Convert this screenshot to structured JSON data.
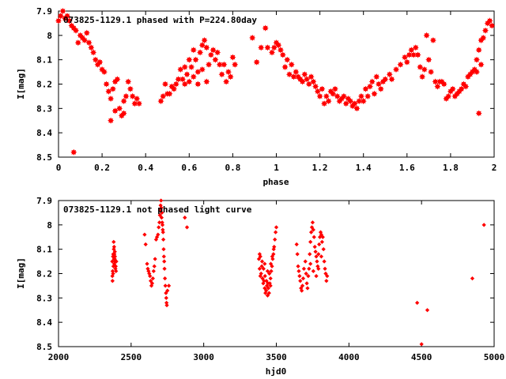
{
  "chart_data": [
    {
      "type": "scatter",
      "title": "073825-1129.1 phased with P=224.80day",
      "xlabel": "phase",
      "ylabel": "I[mag]",
      "xlim": [
        0,
        2
      ],
      "ylim": [
        7.9,
        8.5
      ],
      "y_inverted": true,
      "x_ticks": [
        "0",
        "0.2",
        "0.4",
        "0.6",
        "0.8",
        "1",
        "1.2",
        "1.4",
        "1.6",
        "1.8",
        "2"
      ],
      "y_ticks": [
        "7.9",
        "8",
        "8.1",
        "8.2",
        "8.3",
        "8.4",
        "8.5"
      ],
      "marker": "star",
      "color": "#ff0000",
      "points": [
        [
          0.0,
          7.94
        ],
        [
          0.01,
          7.92
        ],
        [
          0.02,
          7.9
        ],
        [
          0.03,
          7.93
        ],
        [
          0.04,
          7.92
        ],
        [
          0.05,
          7.94
        ],
        [
          0.06,
          7.96
        ],
        [
          0.07,
          7.97
        ],
        [
          0.07,
          8.48
        ],
        [
          0.08,
          7.98
        ],
        [
          0.09,
          8.03
        ],
        [
          0.1,
          8.0
        ],
        [
          0.11,
          8.01
        ],
        [
          0.12,
          8.02
        ],
        [
          0.13,
          7.99
        ],
        [
          0.14,
          8.03
        ],
        [
          0.15,
          8.05
        ],
        [
          0.16,
          8.07
        ],
        [
          0.17,
          8.1
        ],
        [
          0.18,
          8.12
        ],
        [
          0.19,
          8.11
        ],
        [
          0.2,
          8.14
        ],
        [
          0.21,
          8.15
        ],
        [
          0.22,
          8.2
        ],
        [
          0.23,
          8.23
        ],
        [
          0.24,
          8.26
        ],
        [
          0.25,
          8.22
        ],
        [
          0.26,
          8.19
        ],
        [
          0.27,
          8.18
        ],
        [
          0.28,
          8.3
        ],
        [
          0.29,
          8.33
        ],
        [
          0.3,
          8.27
        ],
        [
          0.31,
          8.25
        ],
        [
          0.32,
          8.19
        ],
        [
          0.33,
          8.22
        ],
        [
          0.34,
          8.25
        ],
        [
          0.35,
          8.28
        ],
        [
          0.36,
          8.26
        ],
        [
          0.37,
          8.28
        ],
        [
          0.24,
          8.35
        ],
        [
          0.26,
          8.31
        ],
        [
          0.3,
          8.32
        ],
        [
          0.47,
          8.27
        ],
        [
          0.48,
          8.25
        ],
        [
          0.49,
          8.2
        ],
        [
          0.5,
          8.24
        ],
        [
          0.51,
          8.24
        ],
        [
          0.52,
          8.21
        ],
        [
          0.53,
          8.22
        ],
        [
          0.54,
          8.2
        ],
        [
          0.55,
          8.18
        ],
        [
          0.56,
          8.14
        ],
        [
          0.57,
          8.18
        ],
        [
          0.58,
          8.13
        ],
        [
          0.59,
          8.16
        ],
        [
          0.6,
          8.1
        ],
        [
          0.61,
          8.13
        ],
        [
          0.62,
          8.06
        ],
        [
          0.63,
          8.1
        ],
        [
          0.64,
          8.15
        ],
        [
          0.65,
          8.07
        ],
        [
          0.66,
          8.04
        ],
        [
          0.67,
          8.02
        ],
        [
          0.68,
          8.05
        ],
        [
          0.69,
          8.12
        ],
        [
          0.7,
          8.08
        ],
        [
          0.71,
          8.06
        ],
        [
          0.72,
          8.1
        ],
        [
          0.73,
          8.07
        ],
        [
          0.74,
          8.12
        ],
        [
          0.75,
          8.16
        ],
        [
          0.76,
          8.12
        ],
        [
          0.77,
          8.19
        ],
        [
          0.78,
          8.15
        ],
        [
          0.79,
          8.17
        ],
        [
          0.8,
          8.09
        ],
        [
          0.81,
          8.12
        ],
        [
          0.66,
          8.14
        ],
        [
          0.62,
          8.17
        ],
        [
          0.6,
          8.19
        ],
        [
          0.64,
          8.2
        ],
        [
          0.68,
          8.19
        ],
        [
          0.58,
          8.2
        ],
        [
          0.89,
          8.01
        ],
        [
          0.91,
          8.11
        ],
        [
          0.93,
          8.05
        ],
        [
          0.95,
          7.97
        ],
        [
          0.96,
          8.05
        ],
        [
          0.98,
          8.07
        ],
        [
          0.99,
          8.05
        ],
        [
          1.0,
          8.03
        ],
        [
          1.01,
          8.04
        ],
        [
          1.02,
          8.06
        ],
        [
          1.03,
          8.08
        ],
        [
          1.04,
          8.13
        ],
        [
          1.05,
          8.1
        ],
        [
          1.06,
          8.16
        ],
        [
          1.07,
          8.12
        ],
        [
          1.08,
          8.17
        ],
        [
          1.09,
          8.15
        ],
        [
          1.1,
          8.17
        ],
        [
          1.11,
          8.18
        ],
        [
          1.12,
          8.19
        ],
        [
          1.13,
          8.16
        ],
        [
          1.14,
          8.18
        ],
        [
          1.15,
          8.2
        ],
        [
          1.16,
          8.17
        ],
        [
          1.17,
          8.19
        ],
        [
          1.18,
          8.21
        ],
        [
          1.19,
          8.23
        ],
        [
          1.2,
          8.25
        ],
        [
          1.21,
          8.22
        ],
        [
          1.22,
          8.28
        ],
        [
          1.23,
          8.25
        ],
        [
          1.24,
          8.27
        ],
        [
          1.25,
          8.23
        ],
        [
          1.26,
          8.24
        ],
        [
          1.27,
          8.22
        ],
        [
          1.28,
          8.25
        ],
        [
          1.29,
          8.27
        ],
        [
          1.3,
          8.26
        ],
        [
          1.31,
          8.25
        ],
        [
          1.32,
          8.28
        ],
        [
          1.33,
          8.26
        ],
        [
          1.34,
          8.27
        ],
        [
          1.35,
          8.29
        ],
        [
          1.36,
          8.28
        ],
        [
          1.37,
          8.3
        ],
        [
          1.38,
          8.27
        ],
        [
          1.39,
          8.25
        ],
        [
          1.4,
          8.27
        ],
        [
          1.41,
          8.22
        ],
        [
          1.42,
          8.25
        ],
        [
          1.43,
          8.21
        ],
        [
          1.44,
          8.19
        ],
        [
          1.45,
          8.24
        ],
        [
          1.46,
          8.17
        ],
        [
          1.47,
          8.2
        ],
        [
          1.48,
          8.22
        ],
        [
          1.49,
          8.19
        ],
        [
          1.5,
          8.18
        ],
        [
          1.52,
          8.16
        ],
        [
          1.53,
          8.18
        ],
        [
          1.55,
          8.14
        ],
        [
          1.57,
          8.12
        ],
        [
          1.59,
          8.09
        ],
        [
          1.6,
          8.11
        ],
        [
          1.61,
          8.08
        ],
        [
          1.62,
          8.06
        ],
        [
          1.63,
          8.08
        ],
        [
          1.64,
          8.05
        ],
        [
          1.65,
          8.08
        ],
        [
          1.66,
          8.13
        ],
        [
          1.67,
          8.17
        ],
        [
          1.68,
          8.14
        ],
        [
          1.69,
          8.0
        ],
        [
          1.7,
          8.1
        ],
        [
          1.71,
          8.15
        ],
        [
          1.72,
          8.02
        ],
        [
          1.73,
          8.19
        ],
        [
          1.74,
          8.21
        ],
        [
          1.75,
          8.19
        ],
        [
          1.76,
          8.19
        ],
        [
          1.77,
          8.2
        ],
        [
          1.78,
          8.26
        ],
        [
          1.79,
          8.25
        ],
        [
          1.8,
          8.23
        ],
        [
          1.81,
          8.22
        ],
        [
          1.82,
          8.25
        ],
        [
          1.83,
          8.24
        ],
        [
          1.84,
          8.23
        ],
        [
          1.85,
          8.22
        ],
        [
          1.86,
          8.2
        ],
        [
          1.87,
          8.21
        ],
        [
          1.88,
          8.17
        ],
        [
          1.89,
          8.16
        ],
        [
          1.9,
          8.15
        ],
        [
          1.91,
          8.14
        ],
        [
          1.92,
          8.1
        ],
        [
          1.93,
          8.06
        ],
        [
          1.94,
          8.02
        ],
        [
          1.95,
          8.01
        ],
        [
          1.96,
          7.98
        ],
        [
          1.97,
          7.95
        ],
        [
          1.98,
          7.94
        ],
        [
          1.99,
          7.96
        ],
        [
          1.93,
          8.32
        ],
        [
          1.92,
          8.15
        ],
        [
          1.94,
          8.12
        ]
      ]
    },
    {
      "type": "scatter",
      "title": "073825-1129.1 not phased light curve",
      "xlabel": "hjd0",
      "ylabel": "I[mag]",
      "xlim": [
        2000,
        5000
      ],
      "ylim": [
        7.9,
        8.5
      ],
      "y_inverted": true,
      "x_ticks": [
        "2000",
        "2500",
        "3000",
        "3500",
        "4000",
        "4500",
        "5000"
      ],
      "y_ticks": [
        "7.9",
        "8",
        "8.1",
        "8.2",
        "8.3",
        "8.4",
        "8.5"
      ],
      "marker": "diamond",
      "color": "#ff0000",
      "points": [
        [
          2370,
          8.15
        ],
        [
          2371,
          8.21
        ],
        [
          2373,
          8.19
        ],
        [
          2375,
          8.13
        ],
        [
          2377,
          8.12
        ],
        [
          2378,
          8.17
        ],
        [
          2380,
          8.07
        ],
        [
          2381,
          8.1
        ],
        [
          2382,
          8.14
        ],
        [
          2384,
          8.16
        ],
        [
          2385,
          8.12
        ],
        [
          2387,
          8.14
        ],
        [
          2388,
          8.11
        ],
        [
          2390,
          8.15
        ],
        [
          2392,
          8.18
        ],
        [
          2394,
          8.17
        ],
        [
          2396,
          8.19
        ],
        [
          2398,
          8.15
        ],
        [
          2372,
          8.23
        ],
        [
          2376,
          8.2
        ],
        [
          2383,
          8.09
        ],
        [
          2389,
          8.13
        ],
        [
          2600,
          8.08
        ],
        [
          2610,
          8.16
        ],
        [
          2615,
          8.18
        ],
        [
          2620,
          8.19
        ],
        [
          2625,
          8.2
        ],
        [
          2630,
          8.21
        ],
        [
          2635,
          8.23
        ],
        [
          2640,
          8.25
        ],
        [
          2645,
          8.24
        ],
        [
          2650,
          8.22
        ],
        [
          2655,
          8.19
        ],
        [
          2660,
          8.17
        ],
        [
          2665,
          8.14
        ],
        [
          2672,
          8.06
        ],
        [
          2678,
          8.05
        ],
        [
          2685,
          8.04
        ],
        [
          2690,
          8.01
        ],
        [
          2695,
          7.99
        ],
        [
          2698,
          7.96
        ],
        [
          2700,
          7.94
        ],
        [
          2703,
          7.92
        ],
        [
          2706,
          7.9
        ],
        [
          2708,
          7.93
        ],
        [
          2710,
          7.97
        ],
        [
          2712,
          7.95
        ],
        [
          2714,
          7.99
        ],
        [
          2716,
          8.0
        ],
        [
          2718,
          8.02
        ],
        [
          2720,
          8.03
        ],
        [
          2722,
          8.06
        ],
        [
          2724,
          8.1
        ],
        [
          2726,
          8.13
        ],
        [
          2728,
          8.15
        ],
        [
          2730,
          8.18
        ],
        [
          2733,
          8.22
        ],
        [
          2736,
          8.25
        ],
        [
          2740,
          8.28
        ],
        [
          2742,
          8.3
        ],
        [
          2744,
          8.32
        ],
        [
          2746,
          8.33
        ],
        [
          2760,
          8.25
        ],
        [
          2750,
          8.27
        ],
        [
          2870,
          7.97
        ],
        [
          2885,
          8.01
        ],
        [
          2593,
          8.04
        ],
        [
          3380,
          8.14
        ],
        [
          3385,
          8.18
        ],
        [
          3390,
          8.21
        ],
        [
          3395,
          8.2
        ],
        [
          3400,
          8.17
        ],
        [
          3405,
          8.22
        ],
        [
          3410,
          8.24
        ],
        [
          3415,
          8.23
        ],
        [
          3420,
          8.26
        ],
        [
          3425,
          8.28
        ],
        [
          3430,
          8.27
        ],
        [
          3435,
          8.25
        ],
        [
          3440,
          8.29
        ],
        [
          3445,
          8.26
        ],
        [
          3450,
          8.28
        ],
        [
          3455,
          8.24
        ],
        [
          3460,
          8.22
        ],
        [
          3465,
          8.19
        ],
        [
          3470,
          8.17
        ],
        [
          3475,
          8.14
        ],
        [
          3480,
          8.12
        ],
        [
          3485,
          8.09
        ],
        [
          3490,
          8.06
        ],
        [
          3495,
          8.03
        ],
        [
          3500,
          8.01
        ],
        [
          3402,
          8.15
        ],
        [
          3412,
          8.18
        ],
        [
          3422,
          8.21
        ],
        [
          3432,
          8.23
        ],
        [
          3442,
          8.24
        ],
        [
          3452,
          8.2
        ],
        [
          3462,
          8.16
        ],
        [
          3472,
          8.13
        ],
        [
          3482,
          8.1
        ],
        [
          3420,
          8.16
        ],
        [
          3440,
          8.19
        ],
        [
          3390,
          8.13
        ],
        [
          3460,
          8.25
        ],
        [
          3385,
          8.12
        ],
        [
          3640,
          8.08
        ],
        [
          3645,
          8.12
        ],
        [
          3650,
          8.17
        ],
        [
          3655,
          8.19
        ],
        [
          3660,
          8.21
        ],
        [
          3665,
          8.23
        ],
        [
          3670,
          8.26
        ],
        [
          3675,
          8.27
        ],
        [
          3680,
          8.25
        ],
        [
          3685,
          8.22
        ],
        [
          3690,
          8.18
        ],
        [
          3700,
          8.15
        ],
        [
          3705,
          8.2
        ],
        [
          3710,
          8.24
        ],
        [
          3715,
          8.26
        ],
        [
          3720,
          8.21
        ],
        [
          3725,
          8.18
        ],
        [
          3730,
          8.12
        ],
        [
          3735,
          8.07
        ],
        [
          3740,
          8.03
        ],
        [
          3745,
          8.01
        ],
        [
          3750,
          7.99
        ],
        [
          3755,
          8.02
        ],
        [
          3760,
          8.05
        ],
        [
          3765,
          8.09
        ],
        [
          3770,
          8.11
        ],
        [
          3775,
          8.13
        ],
        [
          3780,
          8.15
        ],
        [
          3785,
          8.17
        ],
        [
          3790,
          8.12
        ],
        [
          3795,
          8.08
        ],
        [
          3800,
          8.05
        ],
        [
          3805,
          8.03
        ],
        [
          3810,
          8.04
        ],
        [
          3815,
          8.07
        ],
        [
          3820,
          8.05
        ],
        [
          3825,
          8.1
        ],
        [
          3830,
          8.15
        ],
        [
          3835,
          8.18
        ],
        [
          3840,
          8.2
        ],
        [
          3845,
          8.23
        ],
        [
          3850,
          8.21
        ],
        [
          3735,
          8.16
        ],
        [
          3755,
          8.19
        ],
        [
          3775,
          8.21
        ],
        [
          3790,
          8.18
        ],
        [
          3810,
          8.13
        ],
        [
          4470,
          8.32
        ],
        [
          4500,
          8.49
        ],
        [
          4540,
          8.35
        ],
        [
          4850,
          8.22
        ],
        [
          4930,
          8.0
        ]
      ]
    }
  ]
}
